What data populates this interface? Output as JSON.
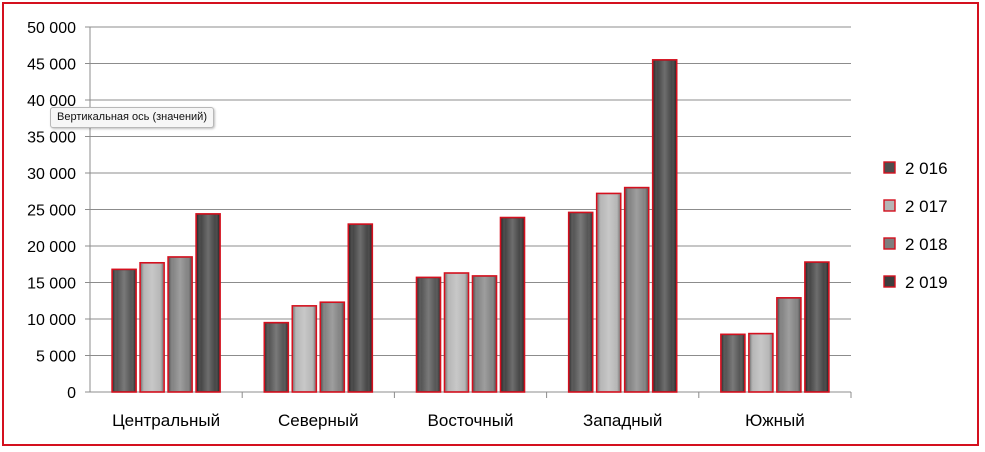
{
  "tooltip": "Вертикальная ось (значений)",
  "chart_data": {
    "type": "bar",
    "categories": [
      "Центральный",
      "Северный",
      "Восточный",
      "Западный",
      "Южный"
    ],
    "series": [
      {
        "name": "2 016",
        "values": [
          16800,
          9500,
          15700,
          24600,
          7900
        ],
        "color": "#4d4d4d"
      },
      {
        "name": "2 017",
        "values": [
          17700,
          11800,
          16300,
          27200,
          8000
        ],
        "color": "#b5b5b5"
      },
      {
        "name": "2 018",
        "values": [
          18500,
          12300,
          15900,
          28000,
          12900
        ],
        "color": "#7e7e7e"
      },
      {
        "name": "2 019",
        "values": [
          24400,
          23000,
          23900,
          45500,
          17800
        ],
        "color": "#3d3d3d"
      }
    ],
    "ylim": [
      0,
      50000
    ],
    "yticks": [
      0,
      5000,
      10000,
      15000,
      20000,
      25000,
      30000,
      35000,
      40000,
      45000,
      50000
    ],
    "ytick_labels": [
      "0",
      "5 000",
      "10 000",
      "15 000",
      "20 000",
      "25 000",
      "30 000",
      "35 000",
      "40 000",
      "45 000",
      "50 000"
    ],
    "grid": true,
    "legend_position": "right",
    "bar_outline_color": "#d4101e",
    "frame_color": "#d4101e"
  }
}
